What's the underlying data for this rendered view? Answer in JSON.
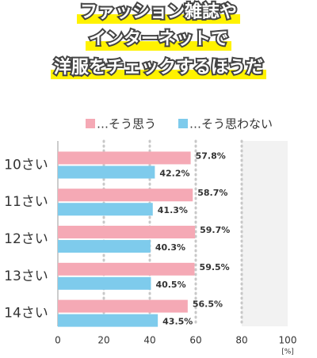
{
  "chart_data": {
    "type": "bar",
    "orientation": "horizontal",
    "title": [
      "ファッション雑誌や",
      "インターネットで",
      "洋服をチェックするほうだ"
    ],
    "categories": [
      "10さい",
      "11さい",
      "12さい",
      "13さい",
      "14さい"
    ],
    "series": [
      {
        "name": "…そう思う",
        "color": "#f5a9b5",
        "values": [
          57.8,
          58.7,
          59.7,
          59.5,
          56.5
        ],
        "value_labels": [
          "57.8%",
          "58.7%",
          "59.7%",
          "59.5%",
          "56.5%"
        ]
      },
      {
        "name": "…そう思わない",
        "color": "#7ecbec",
        "values": [
          42.2,
          41.3,
          40.3,
          40.5,
          43.5
        ],
        "value_labels": [
          "42.2%",
          "41.3%",
          "40.3%",
          "40.5%",
          "43.5%"
        ]
      }
    ],
    "xlim": [
      0,
      100
    ],
    "xticks": [
      0,
      20,
      40,
      60,
      80,
      100
    ],
    "x_unit": "[%]",
    "grid": true
  }
}
